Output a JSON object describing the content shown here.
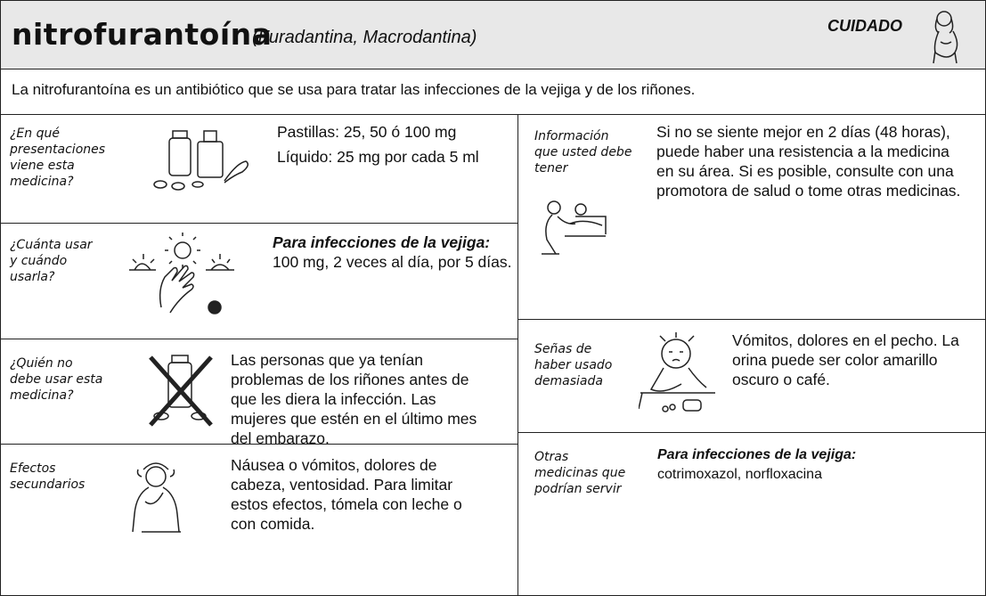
{
  "header": {
    "title": "nitrofurantoína",
    "brand_names": "(Furadantina, Macrodantina)",
    "warning": "CUIDADO"
  },
  "intro": "La nitrofurantoína es un antibiótico que se usa para tratar las infecciones de la vejiga y de los riñones.",
  "left_sections": [
    {
      "label": "¿En qué presentaciones viene esta medicina?",
      "content": [
        "Pastillas: 25, 50 ó 100 mg",
        "Líquido: 25 mg por cada 5 ml"
      ]
    },
    {
      "label": "¿Cuánta usar y cuándo usarla?",
      "heading": "Para infecciones de la vejiga:",
      "content": [
        "100 mg, 2 veces al día, por 5 días."
      ]
    },
    {
      "label": "¿Quién no debe usar esta medicina?",
      "content": [
        "Las personas que ya tenían problemas de los riñones antes de que les diera la infección. Las mujeres que estén en el último mes del embarazo."
      ]
    },
    {
      "label": "Efectos secundarios",
      "content": [
        "Náusea o vómitos, dolores de cabeza, ventosidad. Para limitar estos efectos, tómela con leche o con comida."
      ]
    }
  ],
  "right_sections": [
    {
      "label": "Información que usted debe tener",
      "content": [
        "Si no se siente mejor en 2 días (48 horas), puede haber una resistencia a la medicina en su área. Si es posible, consulte con una promotora de salud o tome otras medicinas."
      ]
    },
    {
      "label": "Señas de haber usado demasiada",
      "content": [
        "Vómitos, dolores en el pecho. La orina puede ser color amarillo oscuro o café."
      ]
    },
    {
      "label": "Otras medicinas que podrían servir",
      "heading": "Para infecciones de la vejiga:",
      "content": [
        "cotrimoxazol, norfloxacina"
      ]
    }
  ]
}
